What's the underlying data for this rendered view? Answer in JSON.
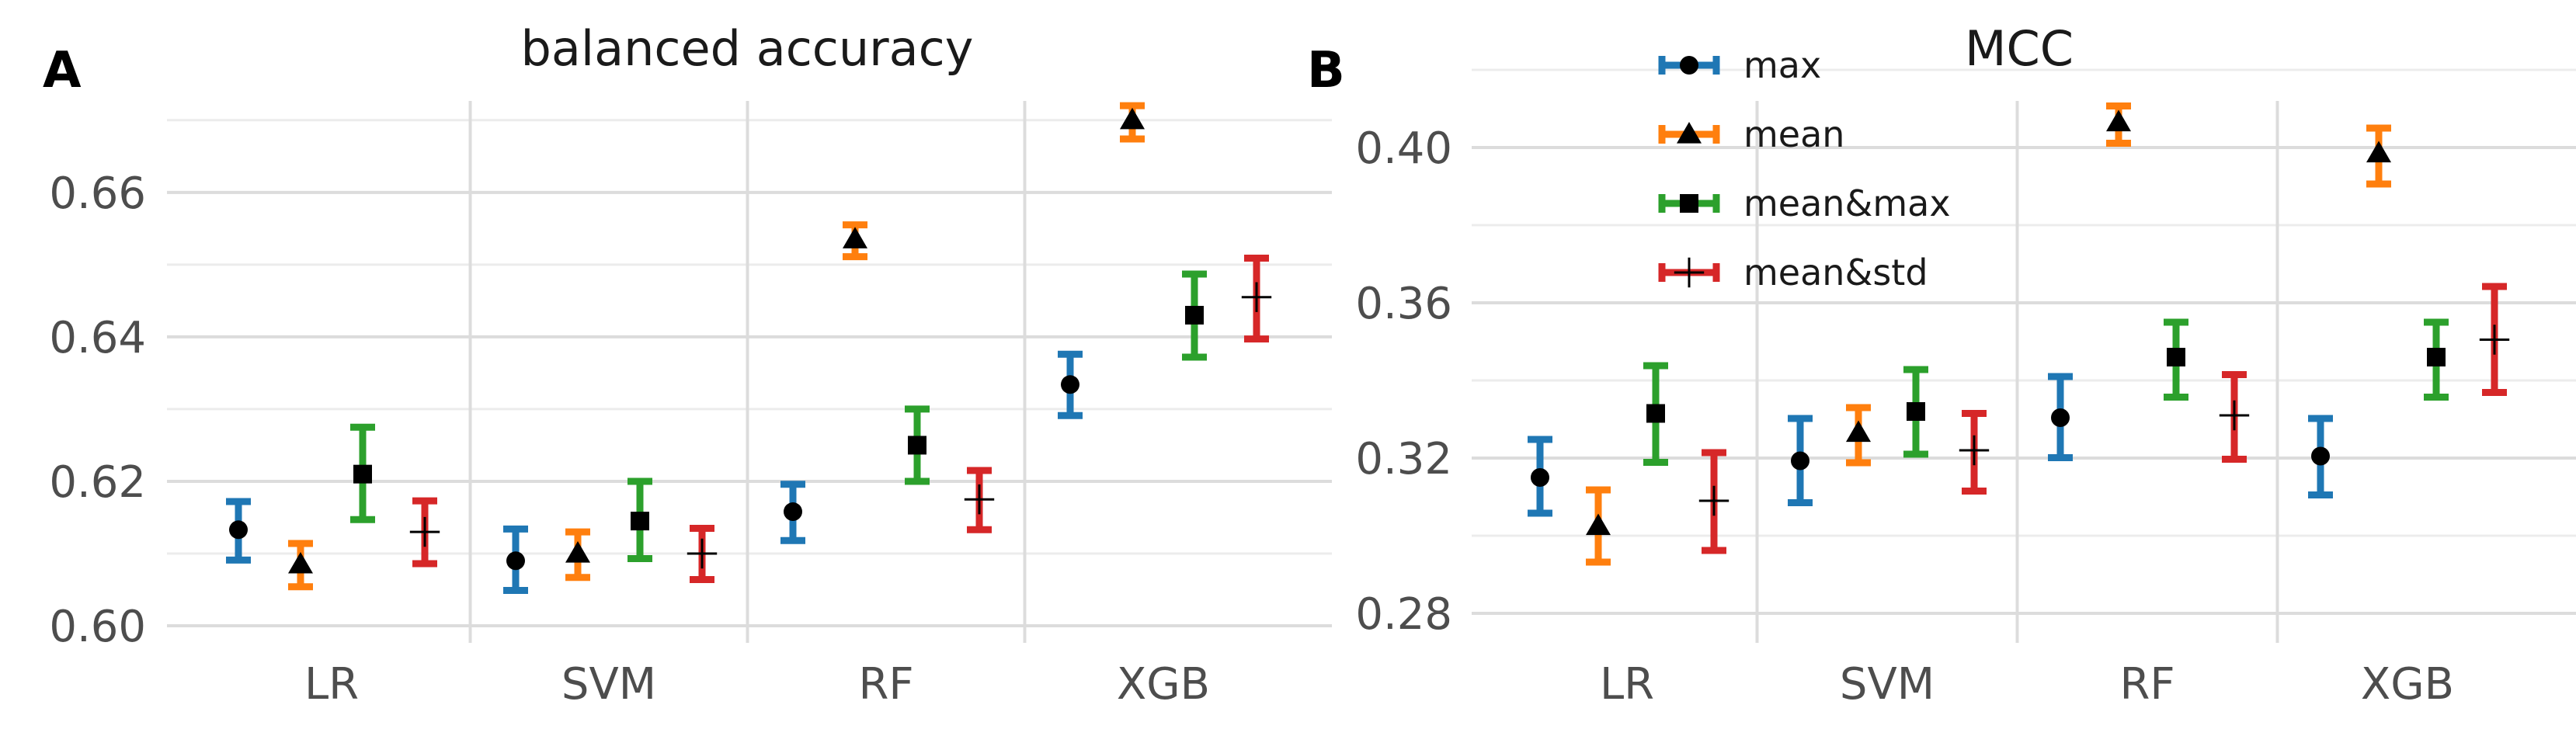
{
  "colors": {
    "max": "#1f77b4",
    "mean": "#ff7f0e",
    "mean&max": "#2ca02c",
    "mean&std": "#d62728"
  },
  "legend": {
    "entries": [
      {
        "key": "max",
        "label": "max",
        "marker": "circle"
      },
      {
        "key": "mean",
        "label": "mean",
        "marker": "triangle"
      },
      {
        "key": "mean&max",
        "label": "mean&max",
        "marker": "square"
      },
      {
        "key": "mean&std",
        "label": "mean&std",
        "marker": "plus"
      }
    ]
  },
  "chart_data": [
    {
      "type": "errorbar",
      "panel_label": "A",
      "title": "balanced accuracy",
      "categories": [
        "LR",
        "SVM",
        "RF",
        "XGB"
      ],
      "ylim": [
        0.5985,
        0.6775
      ],
      "yticks": [
        0.6,
        0.62,
        0.64,
        0.66
      ],
      "ytick_labels": [
        "0.60",
        "0.62",
        "0.64",
        "0.66"
      ],
      "series": [
        {
          "name": "max",
          "values": [
            0.6133,
            0.609,
            0.6158,
            0.6334
          ],
          "lower": [
            0.6091,
            0.6049,
            0.6118,
            0.6291
          ],
          "upper": [
            0.6172,
            0.6134,
            0.6196,
            0.6376
          ]
        },
        {
          "name": "mean",
          "values": [
            0.6085,
            0.61,
            0.6535,
            0.67
          ],
          "lower": [
            0.6054,
            0.6067,
            0.6511,
            0.6674
          ],
          "upper": [
            0.6114,
            0.613,
            0.6555,
            0.672
          ]
        },
        {
          "name": "mean&max",
          "values": [
            0.621,
            0.6145,
            0.625,
            0.643
          ],
          "lower": [
            0.6147,
            0.6093,
            0.62,
            0.6372
          ],
          "upper": [
            0.6275,
            0.62,
            0.63,
            0.6487
          ]
        },
        {
          "name": "mean&std",
          "values": [
            0.613,
            0.61,
            0.6175,
            0.6455
          ],
          "lower": [
            0.6086,
            0.6064,
            0.6133,
            0.6397
          ],
          "upper": [
            0.6173,
            0.6135,
            0.6215,
            0.6509
          ]
        }
      ]
    },
    {
      "type": "errorbar",
      "panel_label": "B",
      "title": "MCC",
      "categories": [
        "LR",
        "SVM",
        "RF",
        "XGB"
      ],
      "ylim": [
        0.274,
        0.427
      ],
      "yticks": [
        0.28,
        0.32,
        0.36,
        0.4
      ],
      "ytick_labels": [
        "0.28",
        "0.32",
        "0.36",
        "0.40"
      ],
      "series": [
        {
          "name": "max",
          "values": [
            0.315,
            0.3193,
            0.3304,
            0.3205
          ],
          "lower": [
            0.3058,
            0.3085,
            0.3201,
            0.3105
          ],
          "upper": [
            0.3248,
            0.3302,
            0.341,
            0.3302
          ]
        },
        {
          "name": "mean",
          "values": [
            0.3025,
            0.3265,
            0.4065,
            0.3985
          ],
          "lower": [
            0.2932,
            0.3188,
            0.4011,
            0.3906
          ],
          "upper": [
            0.3118,
            0.333,
            0.4107,
            0.405
          ]
        },
        {
          "name": "mean&max",
          "values": [
            0.3315,
            0.332,
            0.346,
            0.346
          ],
          "lower": [
            0.3189,
            0.321,
            0.3357,
            0.3357
          ],
          "upper": [
            0.3438,
            0.3428,
            0.355,
            0.355
          ]
        },
        {
          "name": "mean&std",
          "values": [
            0.309,
            0.322,
            0.331,
            0.3505
          ],
          "lower": [
            0.2962,
            0.3115,
            0.3197,
            0.3369
          ],
          "upper": [
            0.3214,
            0.3315,
            0.3415,
            0.3642
          ]
        }
      ]
    }
  ]
}
